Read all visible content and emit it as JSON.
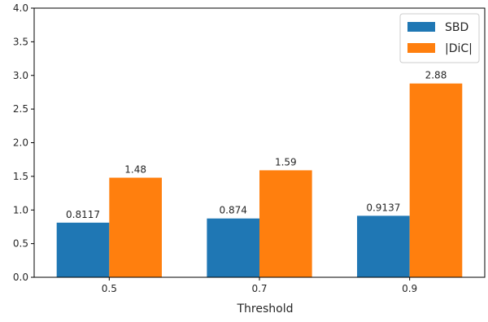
{
  "chart_data": {
    "type": "bar",
    "title": "",
    "xlabel": "Threshold",
    "ylabel": "",
    "categories": [
      "0.5",
      "0.7",
      "0.9"
    ],
    "series": [
      {
        "name": "SBD",
        "color": "#1f77b4",
        "values": [
          0.8117,
          0.874,
          0.9137
        ],
        "labels": [
          "0.8117",
          "0.874",
          "0.9137"
        ]
      },
      {
        "name": "|DiC|",
        "color": "#ff7f0e",
        "values": [
          1.48,
          1.59,
          2.88
        ],
        "labels": [
          "1.48",
          "1.59",
          "2.88"
        ]
      }
    ],
    "ylim": [
      0,
      4.0
    ],
    "yticks": [
      "0.0",
      "0.5",
      "1.0",
      "1.5",
      "2.0",
      "2.5",
      "3.0",
      "3.5",
      "4.0"
    ],
    "grid": false,
    "legend_position": "top-right"
  }
}
